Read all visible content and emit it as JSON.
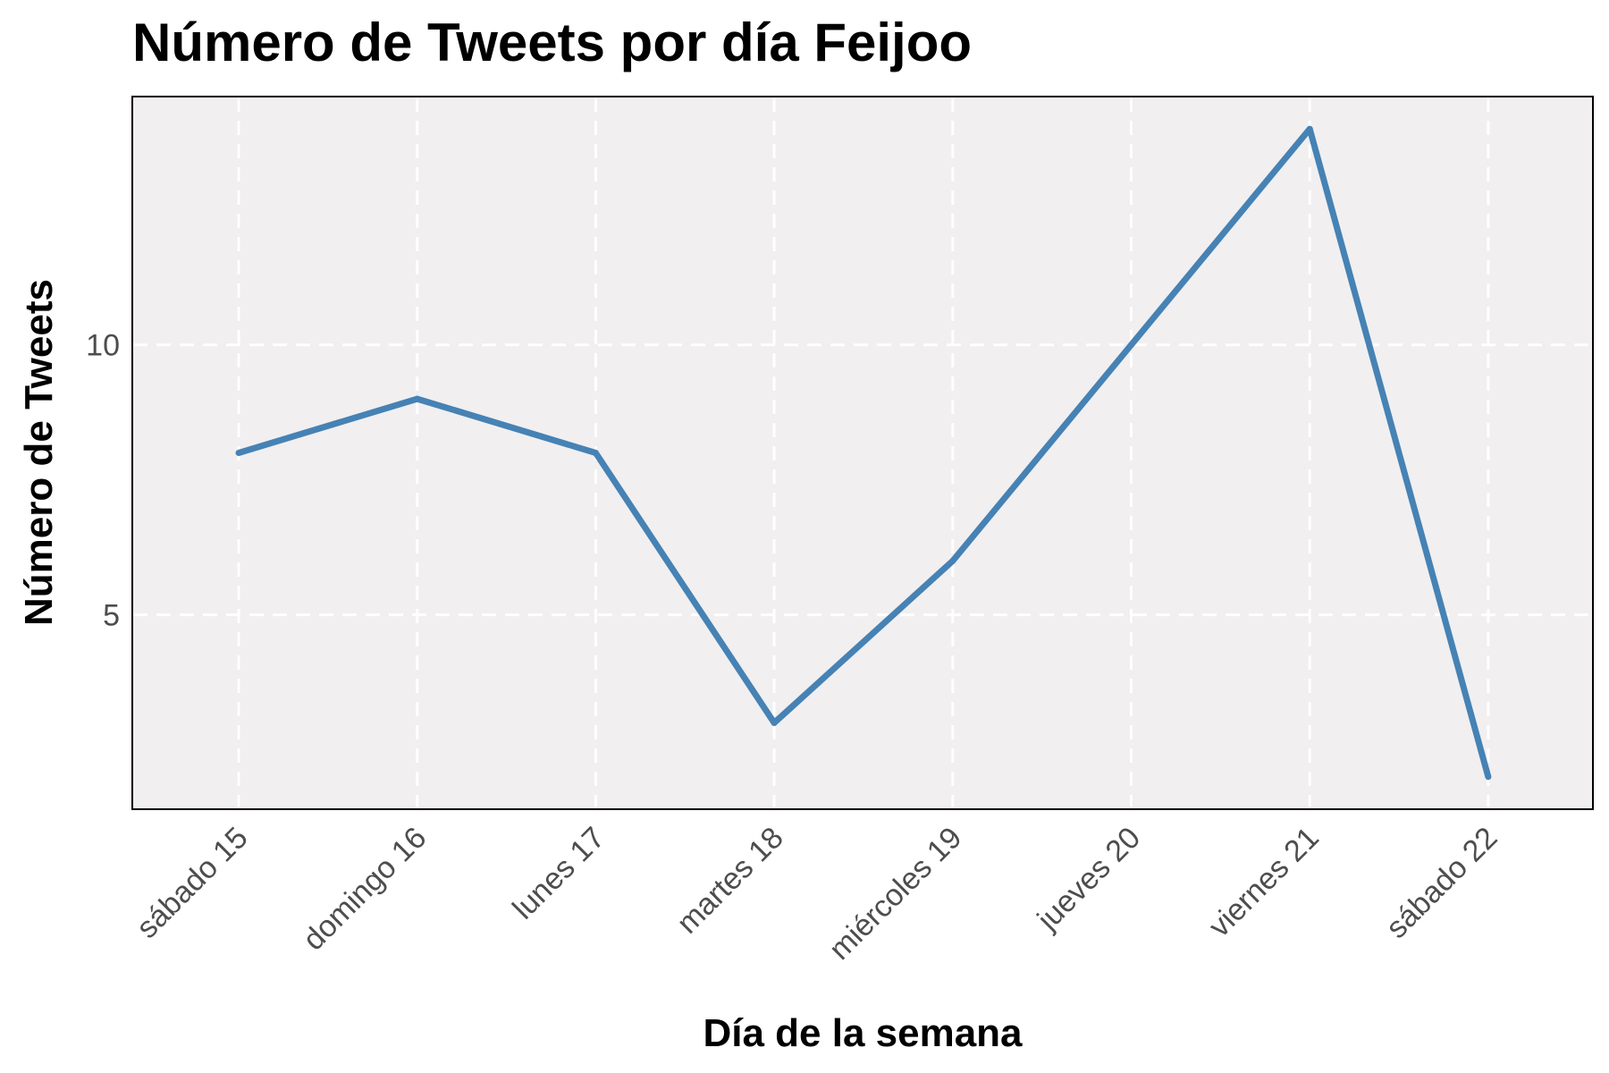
{
  "chart_data": {
    "type": "line",
    "title": "Número de Tweets por día Feijoo",
    "xlabel": "Día de la semana",
    "ylabel": "Número de Tweets",
    "categories": [
      "sábado 15",
      "domingo 16",
      "lunes 17",
      "martes 18",
      "miércoles 19",
      "jueves 20",
      "viernes 21",
      "sábado 22"
    ],
    "values": [
      8,
      9,
      8,
      3,
      6,
      10,
      14,
      2
    ],
    "y_ticks": [
      5,
      10
    ],
    "ylim": [
      1.4,
      14.6
    ],
    "grid": true,
    "line_color": "#4682b4",
    "panel_color": "#f1eff0",
    "grid_color": "#ffffff"
  }
}
